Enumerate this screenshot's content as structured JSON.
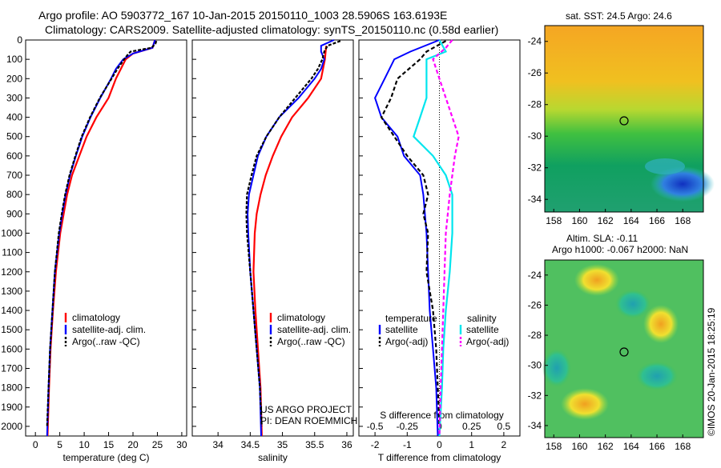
{
  "title_line1": "Argo profile: AO 5903772_167 10-Jan-2015 20150110_1003 28.5906S 163.6193E",
  "title_line2": "Climatology: CARS2009. Satellite-adjusted climatology: synTS_20150110.nc (0.58d earlier)",
  "credit_line1": "US ARGO PROJECT",
  "credit_line2": "PI: DEAN ROEMMICH",
  "imos_label": "©IMOS 20-Jan-2015 18:25:19",
  "colors": {
    "climatology": "#ff0000",
    "satellite": "#0000ff",
    "argo": "#000000",
    "sal_satellite": "#00e5ee",
    "sal_argo": "#ff00ff"
  },
  "chart_data": [
    {
      "type": "line",
      "panel": "temperature",
      "xlabel": "temperature (deg C)",
      "xlim": [
        -2,
        31
      ],
      "xticks": [
        0,
        5,
        10,
        15,
        20,
        25,
        30
      ],
      "ylim": [
        0,
        2050
      ],
      "yticks": [
        0,
        100,
        200,
        300,
        400,
        500,
        600,
        700,
        800,
        900,
        1000,
        1100,
        1200,
        1300,
        1400,
        1500,
        1600,
        1700,
        1800,
        1900,
        2000
      ],
      "legend": [
        "climatology",
        "satellite-adj. clim.",
        "Argo(..raw -QC)"
      ],
      "series": [
        {
          "name": "climatology",
          "y": [
            0,
            40,
            70,
            100,
            150,
            200,
            300,
            400,
            500,
            600,
            700,
            800,
            900,
            1000,
            1200,
            1400,
            1600,
            1800,
            2050
          ],
          "x": [
            24.5,
            24.0,
            20.0,
            18.5,
            17.5,
            16.5,
            15.0,
            12.5,
            10.5,
            9.0,
            7.5,
            6.5,
            5.8,
            5.1,
            4.2,
            3.6,
            3.1,
            2.8,
            2.5
          ]
        },
        {
          "name": "satellite-adj. clim.",
          "y": [
            0,
            40,
            70,
            100,
            150,
            200,
            300,
            400,
            500,
            600,
            700,
            800,
            900,
            1000,
            1200,
            1400,
            1600,
            1800,
            2050
          ],
          "x": [
            24.5,
            24.0,
            20.0,
            18.0,
            16.5,
            15.5,
            13.3,
            11.3,
            9.6,
            8.3,
            7.1,
            6.2,
            5.5,
            4.9,
            4.0,
            3.5,
            3.0,
            2.7,
            2.4
          ]
        },
        {
          "name": "Argo(..raw -QC)",
          "y": [
            5,
            20,
            40,
            60,
            80,
            100,
            150,
            200,
            300,
            400,
            500,
            600,
            700,
            800,
            900,
            1000,
            1200,
            1400,
            1600,
            1800,
            2000
          ],
          "x": [
            24.8,
            24.6,
            23.8,
            19.5,
            18.8,
            18.2,
            16.8,
            15.6,
            13.2,
            11.2,
            9.5,
            8.2,
            7.0,
            6.1,
            5.4,
            4.8,
            4.0,
            3.5,
            3.0,
            2.7,
            2.4
          ]
        }
      ]
    },
    {
      "type": "line",
      "panel": "salinity",
      "xlabel": "salinity",
      "xlim": [
        33.6,
        36.1
      ],
      "xticks": [
        34,
        34.5,
        35,
        35.5,
        36
      ],
      "ylim": [
        0,
        2050
      ],
      "legend": [
        "climatology",
        "satellite-adj. clim.",
        "Argo(..raw -QC)"
      ],
      "series": [
        {
          "name": "climatology",
          "y": [
            30,
            100,
            200,
            300,
            400,
            500,
            600,
            700,
            800,
            900,
            1000,
            1200,
            1400,
            1600,
            1800,
            2050
          ],
          "x": [
            35.68,
            35.66,
            35.6,
            35.4,
            35.15,
            34.98,
            34.85,
            34.74,
            34.66,
            34.6,
            34.57,
            34.55,
            34.58,
            34.62,
            34.66,
            34.68
          ]
        },
        {
          "name": "satellite-adj. clim.",
          "y": [
            0,
            30,
            60,
            100,
            150,
            200,
            300,
            400,
            500,
            600,
            700,
            800,
            900,
            1000,
            1200,
            1400,
            1600,
            1800,
            2050
          ],
          "x": [
            35.8,
            35.6,
            35.6,
            35.65,
            35.6,
            35.5,
            35.25,
            34.95,
            34.75,
            34.62,
            34.55,
            34.48,
            34.46,
            34.47,
            34.5,
            34.55,
            34.6,
            34.65,
            34.67
          ]
        },
        {
          "name": "Argo(..raw -QC)",
          "y": [
            5,
            30,
            60,
            100,
            150,
            200,
            300,
            400,
            500,
            600,
            700,
            800,
            900,
            1000,
            1200,
            1400,
            1600,
            1800,
            2000
          ],
          "x": [
            35.9,
            35.7,
            35.65,
            35.62,
            35.55,
            35.45,
            35.2,
            34.95,
            34.75,
            34.6,
            34.52,
            34.45,
            34.44,
            34.45,
            34.5,
            34.55,
            34.6,
            34.65,
            34.68
          ]
        }
      ]
    },
    {
      "type": "line",
      "panel": "difference",
      "xlabel": "T difference from climatology",
      "xlabel_top": "S difference from climatology",
      "xlim": [
        -2.5,
        2.5
      ],
      "xticks": [
        -2,
        -1,
        0,
        1,
        2
      ],
      "xticks_top": [
        -0.5,
        -0.25,
        0,
        0.25,
        0.5
      ],
      "ylim": [
        0,
        2050
      ],
      "legend_temperature_title": "temperature",
      "legend_salinity_title": "salinity",
      "legend_temperature": [
        "satellite",
        "Argo(-adj)"
      ],
      "legend_salinity": [
        "satellite",
        "Argo(-adj)"
      ],
      "series": [
        {
          "name": "temperature satellite",
          "y": [
            0,
            60,
            100,
            200,
            300,
            400,
            500,
            600,
            700,
            800,
            1000,
            1200,
            1400,
            1600,
            1800,
            2050
          ],
          "x": [
            0.0,
            -0.9,
            -1.4,
            -1.7,
            -2.0,
            -1.8,
            -1.3,
            -1.1,
            -0.6,
            -0.5,
            -0.4,
            -0.35,
            -0.3,
            -0.2,
            -0.1,
            -0.05
          ]
        },
        {
          "name": "temperature Argo(-adj)",
          "y": [
            5,
            60,
            100,
            200,
            300,
            400,
            500,
            600,
            700,
            800,
            900,
            1000,
            1200,
            1400,
            1600,
            1800,
            2000
          ],
          "x": [
            0.2,
            -0.4,
            -0.6,
            -1.3,
            -1.5,
            -1.8,
            -1.4,
            -1.0,
            -0.5,
            -0.35,
            -0.5,
            -0.35,
            -0.4,
            -0.2,
            -0.1,
            -0.05,
            0.0
          ]
        },
        {
          "name": "salinity satellite",
          "y": [
            0,
            60,
            100,
            200,
            300,
            400,
            500,
            600,
            700,
            800,
            1000,
            1200,
            1400,
            1600,
            1800,
            2050
          ],
          "x": [
            0.0,
            0.05,
            -0.1,
            -0.1,
            -0.1,
            -0.15,
            -0.2,
            -0.05,
            0.05,
            0.1,
            0.1,
            0.08,
            0.05,
            0.03,
            0.02,
            0.0
          ]
        },
        {
          "name": "salinity Argo(-adj)",
          "y": [
            0,
            40,
            100,
            200,
            300,
            400,
            500,
            600,
            700,
            800,
            1000,
            1200,
            1400,
            1600,
            1800,
            2050
          ],
          "x": [
            0.1,
            0.05,
            -0.05,
            0.0,
            0.05,
            0.1,
            0.15,
            0.12,
            0.1,
            0.08,
            0.05,
            0.04,
            0.03,
            0.02,
            0.01,
            0.0
          ]
        }
      ]
    },
    {
      "type": "heatmap",
      "panel": "sst-map",
      "title": "sat. SST: 24.5  Argo: 24.6",
      "xticks": [
        158,
        160,
        162,
        164,
        166,
        168
      ],
      "yticks": [
        -24,
        -26,
        -28,
        -30,
        -32,
        -34
      ],
      "marker": {
        "lon": 163.6,
        "lat": -28.6
      }
    },
    {
      "type": "heatmap",
      "panel": "sla-map",
      "title_line1": "Altim. SLA: -0.11",
      "title_line2": "Argo h1000: -0.067  h2000: NaN",
      "xticks": [
        158,
        160,
        162,
        164,
        166,
        168
      ],
      "yticks": [
        -24,
        -26,
        -28,
        -30,
        -32,
        -34
      ],
      "marker": {
        "lon": 163.6,
        "lat": -28.6
      }
    }
  ]
}
